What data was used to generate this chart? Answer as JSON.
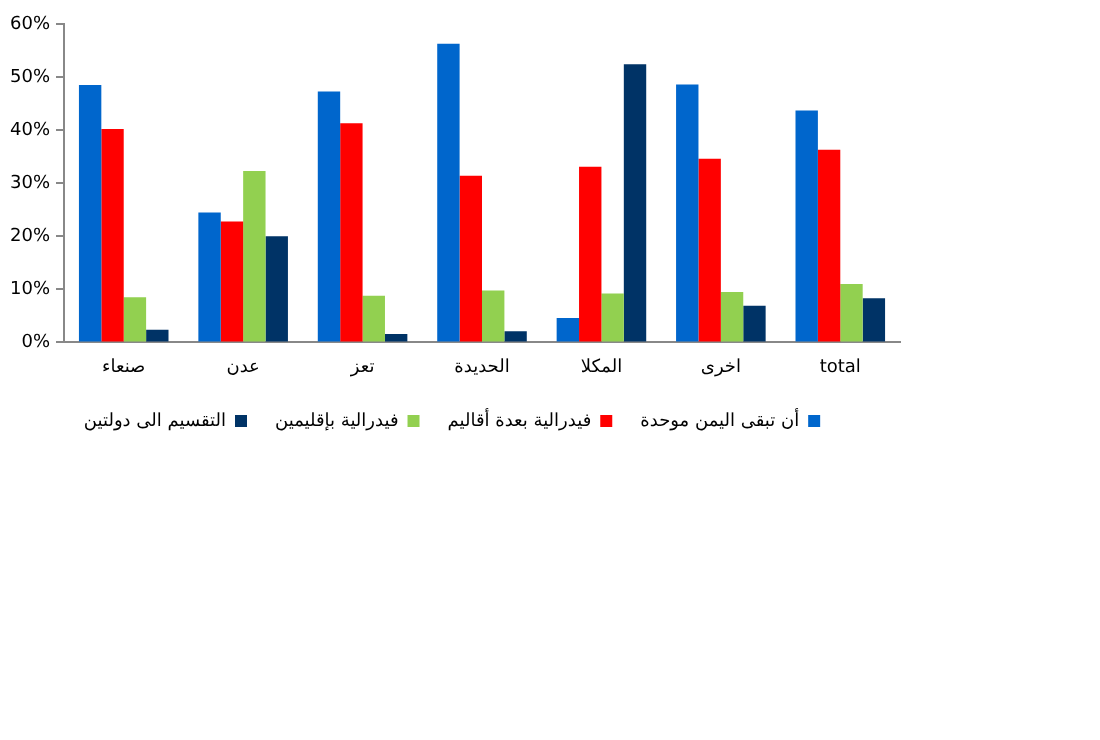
{
  "chart_data": {
    "type": "bar",
    "categories": [
      "صنعاء",
      "عدن",
      "تعز",
      "الحديدة",
      "المكلا",
      "اخرى",
      "total"
    ],
    "series": [
      {
        "name": "أن تبقى اليمن موحدة",
        "color": "#0066cc",
        "values": [
          48.5,
          24.5,
          47.3,
          56.3,
          4.6,
          48.6,
          43.7
        ]
      },
      {
        "name": "فيدرالية بعدة أقاليم",
        "color": "#ff0000",
        "values": [
          40.2,
          22.8,
          41.3,
          31.4,
          33.1,
          34.6,
          36.3
        ]
      },
      {
        "name": "فيدرالية بإقليمين",
        "color": "#92d050",
        "values": [
          8.5,
          32.3,
          8.8,
          9.8,
          9.2,
          9.5,
          11
        ]
      },
      {
        "name": "التقسيم الى دولتين",
        "color": "#003366",
        "values": [
          2.4,
          20,
          1.6,
          2.1,
          52.4,
          6.9,
          8.3
        ]
      }
    ],
    "ylim": [
      0,
      60
    ],
    "yticks": [
      {
        "value": 0,
        "label": "0%"
      },
      {
        "value": 10,
        "label": "10%"
      },
      {
        "value": 20,
        "label": "20%"
      },
      {
        "value": 30,
        "label": "30%"
      },
      {
        "value": 40,
        "label": "40%"
      },
      {
        "value": 50,
        "label": "50%"
      },
      {
        "value": 60,
        "label": "60%"
      }
    ],
    "grid": false,
    "legend": "bottom"
  }
}
